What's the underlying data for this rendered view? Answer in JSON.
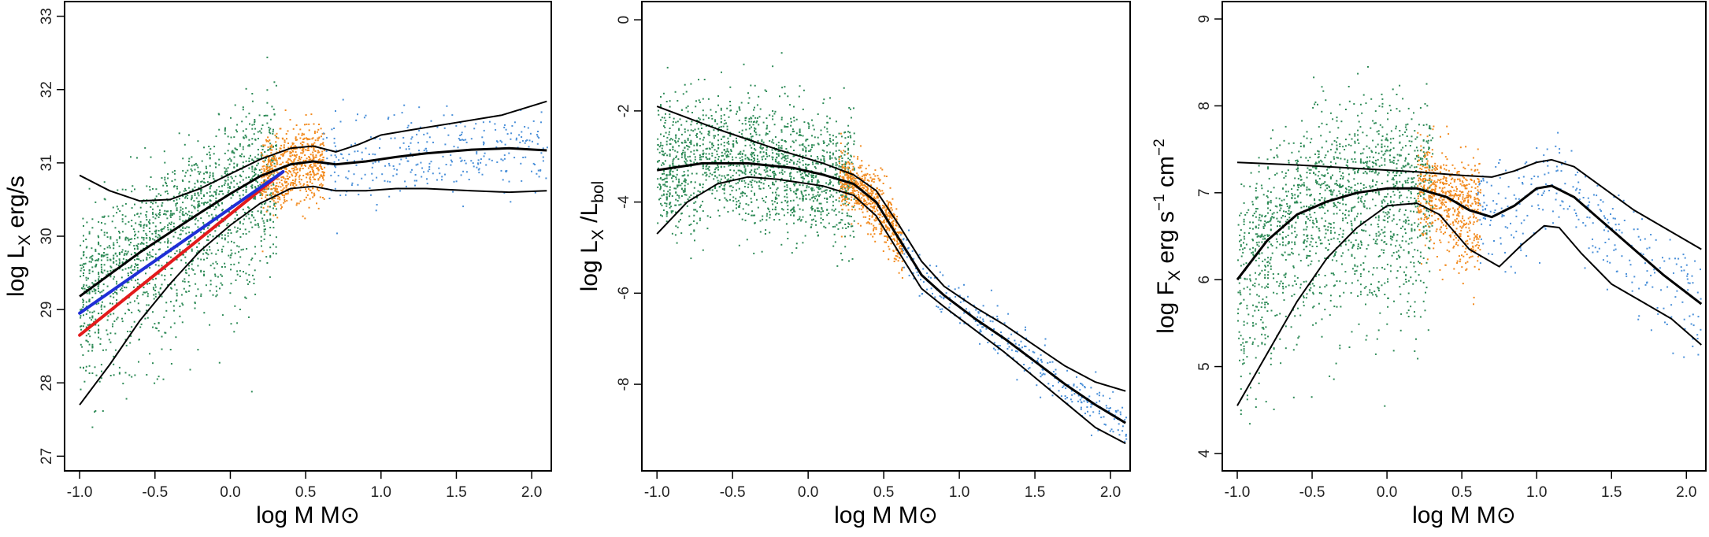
{
  "figure_title": "",
  "colors": {
    "low_mass": "#2e8b57",
    "mid_mass": "#f28a1e",
    "high_mass": "#4a90d9",
    "band": "#000000",
    "fit_red": "#e31a1c",
    "fit_blue": "#1f2fd6"
  },
  "chart_data": [
    {
      "id": "lx",
      "type": "scatter",
      "xlabel": "log M  M⊙",
      "ylabel": {
        "base": "log L",
        "sub": "X",
        "rest": " erg/s"
      },
      "xlim": [
        -1.1,
        2.13
      ],
      "ylim": [
        26.8,
        33.2
      ],
      "xticks": [
        -1.0,
        -0.5,
        0.0,
        0.5,
        1.0,
        1.5,
        2.0
      ],
      "xtick_labels": [
        "-1.0",
        "-0.5",
        "0.0",
        "0.5",
        "1.0",
        "1.5",
        "2.0"
      ],
      "yticks": [
        27,
        28,
        29,
        30,
        31,
        32,
        33
      ],
      "ytick_labels": [
        "27",
        "28",
        "29",
        "30",
        "31",
        "32",
        "33"
      ],
      "point_groups": [
        {
          "name": "low-mass stars",
          "color_key": "low_mass",
          "x_range": [
            -1.0,
            0.3
          ],
          "count": 1700,
          "spread_lo": 1.3,
          "spread_hi": 0.9
        },
        {
          "name": "intermediate-mass stars",
          "color_key": "mid_mass",
          "x_range": [
            0.2,
            0.62
          ],
          "count": 650,
          "spread_lo": 0.45,
          "spread_hi": 0.5
        },
        {
          "name": "high-mass stars",
          "color_key": "high_mass",
          "x_range": [
            0.6,
            2.1
          ],
          "count": 320,
          "spread_lo": 0.55,
          "spread_hi": 0.6
        }
      ],
      "band_curves": [
        {
          "name": "upper",
          "width": 2,
          "points": [
            [
              -1.0,
              30.83
            ],
            [
              -0.8,
              30.62
            ],
            [
              -0.6,
              30.48
            ],
            [
              -0.4,
              30.5
            ],
            [
              -0.2,
              30.65
            ],
            [
              0.0,
              30.85
            ],
            [
              0.2,
              31.05
            ],
            [
              0.4,
              31.2
            ],
            [
              0.55,
              31.23
            ],
            [
              0.7,
              31.15
            ],
            [
              0.85,
              31.25
            ],
            [
              1.0,
              31.38
            ],
            [
              1.2,
              31.45
            ],
            [
              1.5,
              31.55
            ],
            [
              1.8,
              31.65
            ],
            [
              2.1,
              31.84
            ]
          ]
        },
        {
          "name": "median",
          "width": 3,
          "points": [
            [
              -1.0,
              29.18
            ],
            [
              -0.8,
              29.48
            ],
            [
              -0.6,
              29.78
            ],
            [
              -0.4,
              30.05
            ],
            [
              -0.2,
              30.32
            ],
            [
              0.0,
              30.58
            ],
            [
              0.2,
              30.82
            ],
            [
              0.4,
              30.98
            ],
            [
              0.55,
              31.02
            ],
            [
              0.7,
              30.98
            ],
            [
              0.9,
              31.02
            ],
            [
              1.1,
              31.08
            ],
            [
              1.3,
              31.13
            ],
            [
              1.6,
              31.18
            ],
            [
              1.85,
              31.2
            ],
            [
              2.1,
              31.17
            ]
          ]
        },
        {
          "name": "lower",
          "width": 2,
          "points": [
            [
              -1.0,
              27.7
            ],
            [
              -0.8,
              28.25
            ],
            [
              -0.6,
              28.85
            ],
            [
              -0.4,
              29.35
            ],
            [
              -0.2,
              29.8
            ],
            [
              0.0,
              30.15
            ],
            [
              0.2,
              30.45
            ],
            [
              0.4,
              30.65
            ],
            [
              0.55,
              30.68
            ],
            [
              0.7,
              30.62
            ],
            [
              0.9,
              30.62
            ],
            [
              1.1,
              30.65
            ],
            [
              1.3,
              30.65
            ],
            [
              1.6,
              30.62
            ],
            [
              1.85,
              30.6
            ],
            [
              2.1,
              30.62
            ]
          ]
        }
      ],
      "fit_lines": [
        {
          "name": "red fit",
          "color_key": "fit_red",
          "x": [
            -1.0,
            0.35
          ],
          "y": [
            28.65,
            30.88
          ]
        },
        {
          "name": "blue fit",
          "color_key": "fit_blue",
          "x": [
            -1.0,
            0.35
          ],
          "y": [
            28.95,
            30.88
          ]
        }
      ]
    },
    {
      "id": "lxlbol",
      "type": "scatter",
      "xlabel": "log M  M⊙",
      "ylabel": {
        "base": "log L",
        "sub": "X",
        "rest": " /L",
        "sub2": "bol"
      },
      "xlim": [
        -1.1,
        2.13
      ],
      "ylim": [
        -9.9,
        0.4
      ],
      "xticks": [
        -1.0,
        -0.5,
        0.0,
        0.5,
        1.0,
        1.5,
        2.0
      ],
      "xtick_labels": [
        "-1.0",
        "-0.5",
        "0.0",
        "0.5",
        "1.0",
        "1.5",
        "2.0"
      ],
      "yticks": [
        -8,
        -6,
        -4,
        -2,
        0
      ],
      "ytick_labels": [
        "-8",
        "-6",
        "-4",
        "-2",
        "0"
      ],
      "point_groups": [
        {
          "name": "low-mass stars",
          "color_key": "low_mass",
          "x_range": [
            -1.0,
            0.3
          ],
          "count": 1700,
          "spread_lo": 1.2,
          "spread_hi": 1.3
        },
        {
          "name": "intermediate-mass stars",
          "color_key": "mid_mass",
          "x_range": [
            0.2,
            0.62
          ],
          "count": 650,
          "spread_lo": 0.6,
          "spread_hi": 0.6
        },
        {
          "name": "high-mass stars",
          "color_key": "high_mass",
          "x_range": [
            0.6,
            2.1
          ],
          "count": 320,
          "spread_lo": 0.5,
          "spread_hi": 0.5
        }
      ],
      "band_curves": [
        {
          "name": "upper",
          "width": 2,
          "points": [
            [
              -1.0,
              -1.9
            ],
            [
              -0.6,
              -2.4
            ],
            [
              -0.2,
              -2.85
            ],
            [
              0.1,
              -3.15
            ],
            [
              0.3,
              -3.4
            ],
            [
              0.45,
              -3.75
            ],
            [
              0.6,
              -4.5
            ],
            [
              0.75,
              -5.3
            ],
            [
              0.9,
              -5.85
            ],
            [
              1.1,
              -6.3
            ],
            [
              1.3,
              -6.7
            ],
            [
              1.5,
              -7.15
            ],
            [
              1.7,
              -7.6
            ],
            [
              1.9,
              -7.95
            ],
            [
              2.1,
              -8.15
            ]
          ]
        },
        {
          "name": "median",
          "width": 3,
          "points": [
            [
              -1.0,
              -3.3
            ],
            [
              -0.7,
              -3.15
            ],
            [
              -0.4,
              -3.15
            ],
            [
              -0.1,
              -3.25
            ],
            [
              0.1,
              -3.4
            ],
            [
              0.3,
              -3.6
            ],
            [
              0.45,
              -4.0
            ],
            [
              0.6,
              -4.8
            ],
            [
              0.75,
              -5.6
            ],
            [
              0.9,
              -6.05
            ],
            [
              1.1,
              -6.55
            ],
            [
              1.3,
              -7.0
            ],
            [
              1.5,
              -7.5
            ],
            [
              1.7,
              -8.0
            ],
            [
              1.9,
              -8.45
            ],
            [
              2.1,
              -8.85
            ]
          ]
        },
        {
          "name": "lower",
          "width": 2,
          "points": [
            [
              -1.0,
              -4.7
            ],
            [
              -0.8,
              -4.0
            ],
            [
              -0.6,
              -3.6
            ],
            [
              -0.4,
              -3.45
            ],
            [
              -0.2,
              -3.5
            ],
            [
              0.1,
              -3.65
            ],
            [
              0.3,
              -3.85
            ],
            [
              0.45,
              -4.3
            ],
            [
              0.6,
              -5.1
            ],
            [
              0.75,
              -5.9
            ],
            [
              0.9,
              -6.3
            ],
            [
              1.1,
              -6.8
            ],
            [
              1.3,
              -7.3
            ],
            [
              1.5,
              -7.85
            ],
            [
              1.7,
              -8.4
            ],
            [
              1.9,
              -8.95
            ],
            [
              2.1,
              -9.3
            ]
          ]
        }
      ],
      "fit_lines": []
    },
    {
      "id": "fx",
      "type": "scatter",
      "xlabel": "log M  M⊙",
      "ylabel": {
        "base": "log F",
        "sub": "X",
        "rest": " erg s",
        "sup1": "−1",
        "rest2": " cm",
        "sup2": "−2"
      },
      "xlim": [
        -1.1,
        2.13
      ],
      "ylim": [
        3.8,
        9.2
      ],
      "xticks": [
        -1.0,
        -0.5,
        0.0,
        0.5,
        1.0,
        1.5,
        2.0
      ],
      "xtick_labels": [
        "-1.0",
        "-0.5",
        "0.0",
        "0.5",
        "1.0",
        "1.5",
        "2.0"
      ],
      "yticks": [
        4,
        5,
        6,
        7,
        8,
        9
      ],
      "ytick_labels": [
        "4",
        "5",
        "6",
        "7",
        "8",
        "9"
      ],
      "point_groups": [
        {
          "name": "low-mass stars",
          "color_key": "low_mass",
          "x_range": [
            -1.0,
            0.3
          ],
          "count": 1700,
          "spread_lo": 1.4,
          "spread_hi": 0.9
        },
        {
          "name": "intermediate-mass stars",
          "color_key": "mid_mass",
          "x_range": [
            0.2,
            0.62
          ],
          "count": 650,
          "spread_lo": 0.6,
          "spread_hi": 0.5
        },
        {
          "name": "high-mass stars",
          "color_key": "high_mass",
          "x_range": [
            0.6,
            2.1
          ],
          "count": 320,
          "spread_lo": 0.6,
          "spread_hi": 0.5
        }
      ],
      "band_curves": [
        {
          "name": "upper",
          "width": 2,
          "points": [
            [
              -1.0,
              7.35
            ],
            [
              -0.6,
              7.32
            ],
            [
              -0.2,
              7.28
            ],
            [
              0.2,
              7.24
            ],
            [
              0.5,
              7.2
            ],
            [
              0.7,
              7.18
            ],
            [
              0.85,
              7.25
            ],
            [
              1.0,
              7.35
            ],
            [
              1.1,
              7.38
            ],
            [
              1.25,
              7.3
            ],
            [
              1.45,
              7.05
            ],
            [
              1.65,
              6.8
            ],
            [
              1.85,
              6.6
            ],
            [
              2.1,
              6.35
            ]
          ]
        },
        {
          "name": "median",
          "width": 3,
          "points": [
            [
              -1.0,
              6.0
            ],
            [
              -0.8,
              6.45
            ],
            [
              -0.6,
              6.75
            ],
            [
              -0.4,
              6.9
            ],
            [
              -0.2,
              7.0
            ],
            [
              0.0,
              7.05
            ],
            [
              0.2,
              7.05
            ],
            [
              0.4,
              6.95
            ],
            [
              0.55,
              6.8
            ],
            [
              0.7,
              6.72
            ],
            [
              0.85,
              6.85
            ],
            [
              1.0,
              7.05
            ],
            [
              1.1,
              7.08
            ],
            [
              1.25,
              6.95
            ],
            [
              1.45,
              6.65
            ],
            [
              1.65,
              6.35
            ],
            [
              1.85,
              6.05
            ],
            [
              2.1,
              5.72
            ]
          ]
        },
        {
          "name": "lower",
          "width": 2,
          "points": [
            [
              -1.0,
              4.55
            ],
            [
              -0.8,
              5.15
            ],
            [
              -0.6,
              5.75
            ],
            [
              -0.4,
              6.25
            ],
            [
              -0.2,
              6.6
            ],
            [
              0.0,
              6.85
            ],
            [
              0.2,
              6.88
            ],
            [
              0.35,
              6.75
            ],
            [
              0.55,
              6.35
            ],
            [
              0.75,
              6.15
            ],
            [
              0.9,
              6.4
            ],
            [
              1.05,
              6.62
            ],
            [
              1.15,
              6.6
            ],
            [
              1.3,
              6.3
            ],
            [
              1.5,
              5.95
            ],
            [
              1.7,
              5.75
            ],
            [
              1.9,
              5.55
            ],
            [
              2.1,
              5.25
            ]
          ]
        }
      ],
      "fit_lines": []
    }
  ]
}
